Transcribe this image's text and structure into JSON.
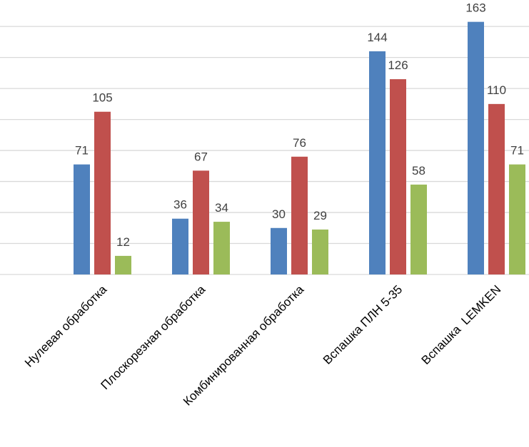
{
  "chart_data": {
    "type": "bar",
    "categories": [
      "Нулевая обработка",
      "Плоскорезная обработка",
      "Комбинированная обработка",
      "Вспашка ПЛН 5-35",
      "Вспашка  LEMKEN"
    ],
    "series": [
      {
        "values": [
          71,
          36,
          30,
          144,
          163
        ],
        "color": "#4f81bd"
      },
      {
        "values": [
          105,
          67,
          76,
          126,
          110
        ],
        "color": "#c0504d"
      },
      {
        "values": [
          12,
          34,
          29,
          58,
          71
        ],
        "color": "#9bbb59"
      }
    ],
    "ylim": [
      0,
      160
    ],
    "grid": true,
    "title": "",
    "xlabel": "",
    "ylabel": ""
  }
}
